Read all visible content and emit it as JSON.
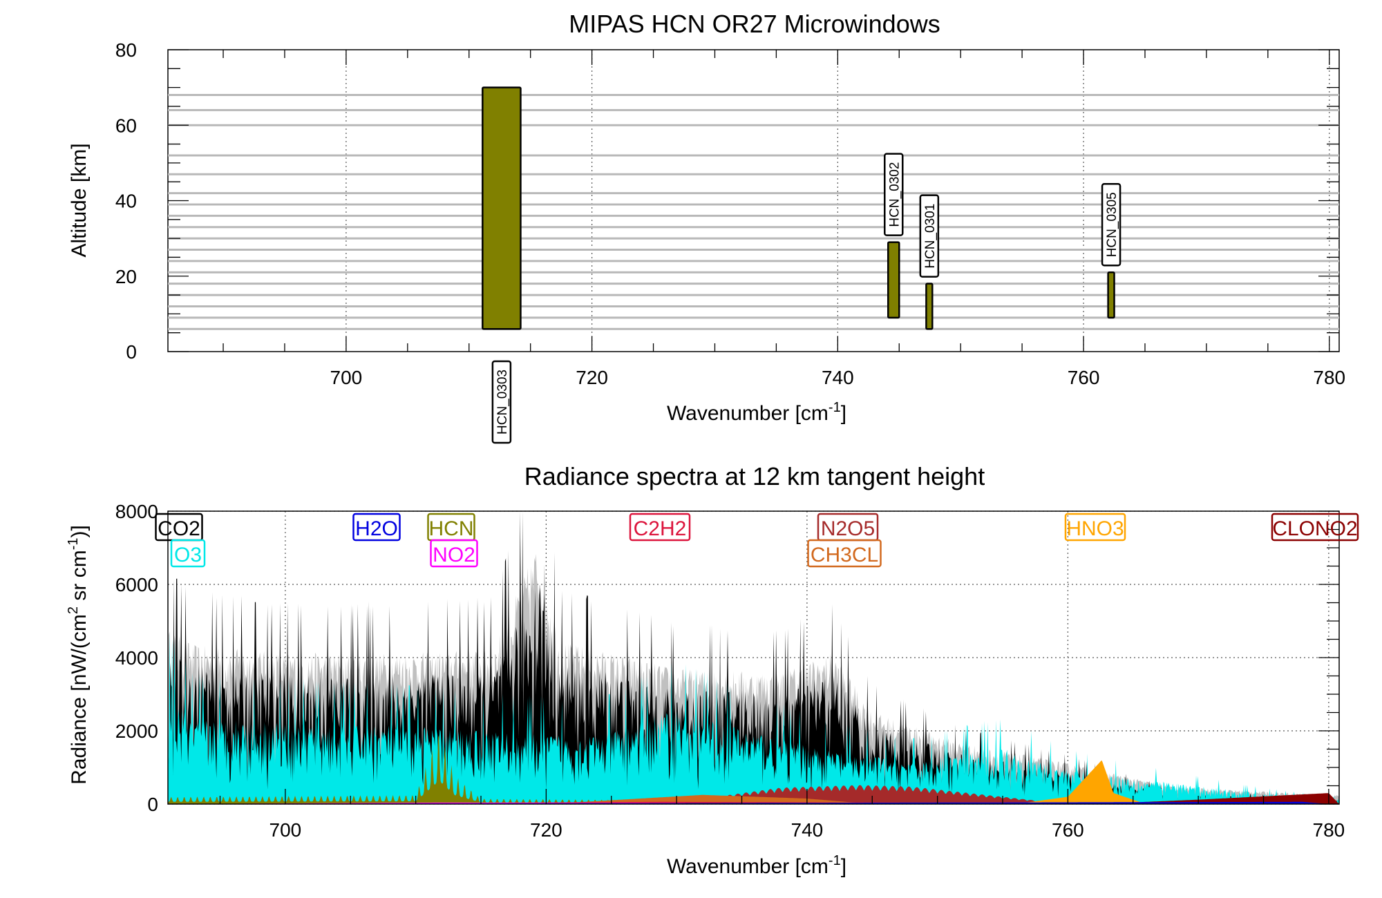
{
  "chart_data": [
    {
      "type": "bar",
      "title": "MIPAS HCN OR27 Microwindows",
      "xlabel": "Wavenumber [cm",
      "xlabel_sup": "-1",
      "xlabel_end": "]",
      "ylabel": "Altitude [km]",
      "xlim": [
        685.5,
        780.8
      ],
      "ylim": [
        0,
        80
      ],
      "xticks": [
        700,
        720,
        740,
        760,
        780
      ],
      "yticks": [
        0,
        20,
        40,
        60,
        80
      ],
      "grid": "x dotted",
      "bar_color": "#808000",
      "altitude_levels": [
        6,
        9,
        12,
        15,
        18,
        21,
        24,
        27,
        30,
        33,
        36,
        39,
        42,
        47,
        52,
        60,
        64,
        68
      ],
      "microwindows": [
        {
          "name": "HCN_0303",
          "x_start": 711.1,
          "x_end": 714.2,
          "alt_bottom": 6,
          "alt_top": 70,
          "label_position": "below axis"
        },
        {
          "name": "HCN_0302",
          "x_start": 744.1,
          "x_end": 745.0,
          "alt_bottom": 9,
          "alt_top": 29,
          "label_position": "above bar"
        },
        {
          "name": "HCN_0301",
          "x_start": 747.2,
          "x_end": 747.7,
          "alt_bottom": 6,
          "alt_top": 18,
          "label_position": "above bar"
        },
        {
          "name": "HCN_0305",
          "x_start": 762.0,
          "x_end": 762.5,
          "alt_bottom": 9,
          "alt_top": 21,
          "label_position": "above bar"
        }
      ]
    },
    {
      "type": "area",
      "title": "Radiance spectra at 12 km tangent height",
      "xlabel": "Wavenumber [cm",
      "xlabel_sup": "-1",
      "xlabel_end": "]",
      "ylabel_parts": [
        "Radiance [nW/(cm",
        "2",
        " sr cm",
        "-1",
        ")]"
      ],
      "xlim": [
        691,
        780.8
      ],
      "ylim": [
        0,
        8000
      ],
      "xticks": [
        700,
        720,
        740,
        760,
        780
      ],
      "yticks": [
        0,
        2000,
        4000,
        6000,
        8000
      ],
      "grid": "dotted",
      "legend_placement": "top",
      "series": [
        {
          "name": "CO2",
          "color": "#000000",
          "envelope": [
            [
              691,
              4300
            ],
            [
              693,
              3900
            ],
            [
              700,
              3700
            ],
            [
              710,
              3700
            ],
            [
              716,
              3800
            ],
            [
              719.5,
              6600
            ],
            [
              721,
              4000
            ],
            [
              730,
              3300
            ],
            [
              738,
              3200
            ],
            [
              742,
              3700
            ],
            [
              745,
              2200
            ],
            [
              752,
              1400
            ],
            [
              760,
              900
            ],
            [
              768,
              300
            ],
            [
              780,
              100
            ]
          ]
        },
        {
          "name": "O3",
          "color": "#00e8e8",
          "envelope": [
            [
              691,
              3200
            ],
            [
              693,
              2400
            ],
            [
              700,
              2300
            ],
            [
              710,
              2200
            ],
            [
              718,
              2000
            ],
            [
              724,
              1900
            ],
            [
              730,
              2700
            ],
            [
              735,
              2100
            ],
            [
              742,
              1500
            ],
            [
              748,
              1200
            ],
            [
              755,
              1600
            ],
            [
              760,
              1000
            ],
            [
              768,
              600
            ],
            [
              775,
              300
            ],
            [
              780,
              150
            ]
          ]
        },
        {
          "name": "H2O",
          "color": "#0000e0",
          "envelope": [
            [
              691,
              0
            ],
            [
              778,
              60
            ],
            [
              780,
              0
            ]
          ]
        },
        {
          "name": "HCN",
          "color": "#808000",
          "envelope": [
            [
              691,
              200
            ],
            [
              710,
              250
            ],
            [
              711.8,
              2100
            ],
            [
              713,
              800
            ],
            [
              715,
              150
            ],
            [
              725,
              120
            ],
            [
              735,
              60
            ],
            [
              760,
              20
            ],
            [
              780,
              0
            ]
          ]
        },
        {
          "name": "NO2",
          "color": "#ff00ff",
          "envelope": [
            [
              691,
              0
            ],
            [
              712,
              40
            ],
            [
              780,
              0
            ]
          ]
        },
        {
          "name": "C2H2",
          "color": "#dc143c",
          "envelope": [
            [
              691,
              0
            ],
            [
              729,
              60
            ],
            [
              780,
              0
            ]
          ]
        },
        {
          "name": "N2O5",
          "color": "#a52a2a",
          "envelope": [
            [
              726,
              0
            ],
            [
              732,
              150
            ],
            [
              738,
              450
            ],
            [
              744,
              520
            ],
            [
              748,
              480
            ],
            [
              755,
              200
            ],
            [
              760,
              0
            ]
          ]
        },
        {
          "name": "CH3CL",
          "color": "#d2691e",
          "envelope": [
            [
              720,
              0
            ],
            [
              732,
              250
            ],
            [
              740,
              150
            ],
            [
              745,
              0
            ]
          ]
        },
        {
          "name": "HNO3",
          "color": "#ffa500",
          "envelope": [
            [
              756,
              0
            ],
            [
              760,
              200
            ],
            [
              762.6,
              1200
            ],
            [
              763.5,
              300
            ],
            [
              766,
              0
            ]
          ]
        },
        {
          "name": "CLONO2",
          "color": "#8b0000",
          "envelope": [
            [
              762,
              0
            ],
            [
              770,
              120
            ],
            [
              780,
              300
            ],
            [
              780.8,
              0
            ]
          ]
        }
      ]
    }
  ]
}
